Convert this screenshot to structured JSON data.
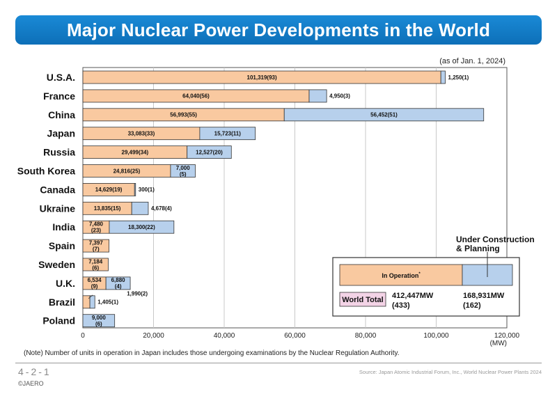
{
  "header": {
    "title": "Major Nuclear Power Developments in the World"
  },
  "as_of": "(as of Jan. 1, 2024)",
  "note": "(Note) Number of units in operation in Japan includes those undergoing examinations by the Nuclear Regulation Authority.",
  "footer": {
    "page_number": "4-2-1",
    "source": "Source: Japan Atomic Industrial Forum, Inc., World Nuclear Power Plants 2024",
    "copyright": "©JAERO"
  },
  "colors": {
    "operation": "#f9c9a0",
    "construction": "#b7d0ec",
    "banner": "#1478c4",
    "world_total_bg": "#f3d3e6"
  },
  "chart_data": {
    "type": "bar",
    "orientation": "horizontal",
    "stacked": true,
    "categories": [
      "U.S.A.",
      "France",
      "China",
      "Japan",
      "Russia",
      "South Korea",
      "Canada",
      "Ukraine",
      "India",
      "Spain",
      "Sweden",
      "U.K.",
      "Brazil",
      "Poland"
    ],
    "series": [
      {
        "key": "operation",
        "values": [
          101319,
          64040,
          56993,
          33083,
          29499,
          24816,
          14629,
          13835,
          7480,
          7397,
          7184,
          6534,
          1990,
          0
        ],
        "labels": [
          "101,319(93)",
          "64,040(56)",
          "56,993(55)",
          "33,083(33)",
          "29,499(34)",
          "24,816(25)",
          "14,629(19)",
          "13,835(15)",
          "7,480\n(23)",
          "7,397\n(7)",
          "7,184\n(6)",
          "6,534\n(9)",
          "1,990(2)",
          ""
        ]
      },
      {
        "key": "construction",
        "values": [
          1250,
          4950,
          56452,
          15723,
          12527,
          7000,
          300,
          4678,
          18300,
          0,
          0,
          6880,
          1405,
          9000
        ],
        "labels": [
          "1,250(1)",
          "4,950(3)",
          "56,452(51)",
          "15,723(11)",
          "12,527(20)",
          "7,000\n(5)",
          "300(1)",
          "4,678(4)",
          "18,300(22)",
          "",
          "",
          "6,880\n(4)",
          "1,405(1)",
          "9,000\n(6)"
        ]
      }
    ],
    "xlim": [
      0,
      120000
    ],
    "xticks": [
      "0",
      "20,000",
      "40,000",
      "60,000",
      "80,000",
      "100,000",
      "120,000"
    ],
    "xunit": "(MW)",
    "grid": true,
    "legend": {
      "operation": "In Operation",
      "operation_mark": "*",
      "construction": "Under Construction\n& Planning",
      "total_label": "World Total",
      "operation_total": "412,447MW\n(433)",
      "construction_total": "168,931MW\n(162)"
    }
  }
}
